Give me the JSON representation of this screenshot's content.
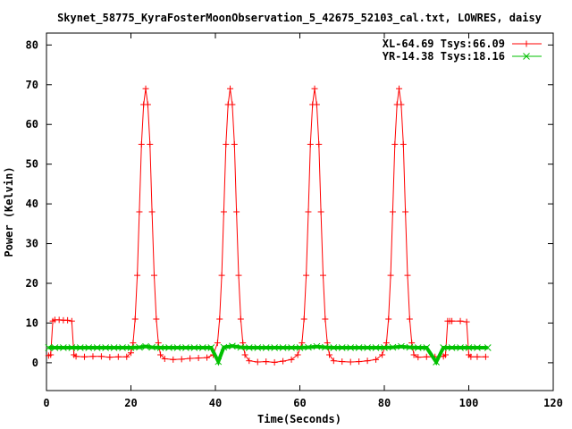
{
  "chart_data": {
    "type": "line",
    "title": "Skynet_58775_KyraFosterMoonObservation_5_42675_52103_cal.txt, LOWRES, daisy",
    "xlabel": "Time(Seconds)",
    "ylabel": "Power (Kelvin)",
    "xlim": [
      0,
      120
    ],
    "ylim": [
      -7,
      83
    ],
    "xticks": [
      0,
      20,
      40,
      60,
      80,
      100,
      120
    ],
    "yticks": [
      0,
      10,
      20,
      30,
      40,
      50,
      60,
      70,
      80
    ],
    "grid": false,
    "legend": "top-right",
    "series": [
      {
        "name": "XL-64.69 Tsys:66.09",
        "color": "#ff0000",
        "marker": "plus",
        "x": [
          0.5,
          1.0,
          1.5,
          2.0,
          3.0,
          4.0,
          5.0,
          6.0,
          6.5,
          7.0,
          9.0,
          11.0,
          13.0,
          15.0,
          17.0,
          19.0,
          20.0,
          20.5,
          21.0,
          21.5,
          22.0,
          22.5,
          23.0,
          23.5,
          24.0,
          24.5,
          25.0,
          25.5,
          26.0,
          26.5,
          27.0,
          28.0,
          30.0,
          32.0,
          34.0,
          36.0,
          38.0,
          39.5,
          40.5,
          41.0,
          41.5,
          42.0,
          42.5,
          43.0,
          43.5,
          44.0,
          44.5,
          45.0,
          45.5,
          46.0,
          46.5,
          47.0,
          48.0,
          50.0,
          52.0,
          54.0,
          56.0,
          58.0,
          59.5,
          60.5,
          61.0,
          61.5,
          62.0,
          62.5,
          63.0,
          63.5,
          64.0,
          64.5,
          65.0,
          65.5,
          66.0,
          66.5,
          67.0,
          68.0,
          70.0,
          72.0,
          74.0,
          76.0,
          78.0,
          79.5,
          80.5,
          81.0,
          81.5,
          82.0,
          82.5,
          83.0,
          83.5,
          84.0,
          84.5,
          85.0,
          85.5,
          86.0,
          86.5,
          87.0,
          88.0,
          90.0,
          92.0,
          94.0,
          94.5,
          95.0,
          95.5,
          96.0,
          98.0,
          99.5,
          100.0,
          100.5,
          102.0,
          104.0
        ],
        "y": [
          1.8,
          2.0,
          10.5,
          10.8,
          10.8,
          10.7,
          10.7,
          10.5,
          2.0,
          1.6,
          1.5,
          1.6,
          1.6,
          1.4,
          1.5,
          1.5,
          2.5,
          5.0,
          11.0,
          22.0,
          38.0,
          55.0,
          65.0,
          69.0,
          65.0,
          55.0,
          38.0,
          22.0,
          11.0,
          5.0,
          2.0,
          1.0,
          0.8,
          0.9,
          1.1,
          1.2,
          1.3,
          2.0,
          5.0,
          11.0,
          22.0,
          38.0,
          55.0,
          65.0,
          69.0,
          65.0,
          55.0,
          38.0,
          22.0,
          11.0,
          5.0,
          2.0,
          0.5,
          0.2,
          0.3,
          0.1,
          0.4,
          0.8,
          2.0,
          5.0,
          11.0,
          22.0,
          38.0,
          55.0,
          65.0,
          69.0,
          65.0,
          55.0,
          38.0,
          22.0,
          11.0,
          5.0,
          2.0,
          0.5,
          0.3,
          0.2,
          0.3,
          0.5,
          0.8,
          2.0,
          5.0,
          11.0,
          22.0,
          38.0,
          55.0,
          65.0,
          69.0,
          65.0,
          55.0,
          38.0,
          22.0,
          11.0,
          5.0,
          2.0,
          1.4,
          1.5,
          1.5,
          1.6,
          2.0,
          10.5,
          10.5,
          10.5,
          10.5,
          10.3,
          2.0,
          1.5,
          1.5,
          1.5
        ]
      },
      {
        "name": "YR-14.38 Tsys:18.16",
        "color": "#00c000",
        "marker": "cross",
        "x": [
          0.5,
          2,
          4,
          6,
          8,
          10,
          12,
          14,
          16,
          18,
          20,
          22,
          23.5,
          25,
          27,
          29,
          31,
          33,
          35,
          37,
          39,
          40.7,
          42,
          44,
          46,
          48,
          50,
          52,
          54,
          56,
          58,
          60,
          62,
          64,
          66,
          68,
          70,
          72,
          74,
          76,
          78,
          80,
          82,
          84,
          86,
          88,
          90,
          92.3,
          94,
          96,
          98,
          100,
          102,
          104.5
        ],
        "y": [
          3.8,
          3.8,
          3.8,
          3.8,
          3.8,
          3.8,
          3.8,
          3.8,
          3.8,
          3.8,
          3.8,
          3.9,
          4.1,
          3.9,
          3.8,
          3.8,
          3.8,
          3.8,
          3.8,
          3.8,
          3.8,
          0.3,
          3.9,
          4.2,
          3.9,
          3.8,
          3.8,
          3.8,
          3.8,
          3.8,
          3.8,
          3.8,
          3.9,
          4.1,
          3.9,
          3.8,
          3.8,
          3.8,
          3.8,
          3.8,
          3.8,
          3.8,
          3.9,
          4.1,
          3.9,
          3.8,
          3.8,
          0.2,
          3.8,
          3.8,
          3.8,
          3.8,
          3.8,
          3.8
        ]
      }
    ]
  }
}
